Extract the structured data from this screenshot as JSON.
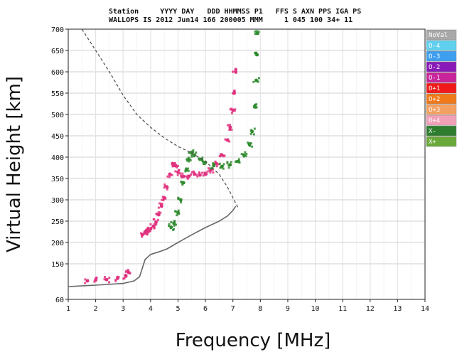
{
  "header": {
    "row1": "Station     YYYY DAY   DDD HHMMSS P1   FFS S AXN PPS IGA PS",
    "row2": "WALLOPS IS 2012 Jun14 166 200005 MMM     1 045 100 34+ 11"
  },
  "chart_data": {
    "type": "scatter",
    "title": "",
    "xlabel": "Frequency [MHz]",
    "ylabel": "Virtual Height [km]",
    "xlim": [
      1,
      14
    ],
    "ylim": [
      60,
      700
    ],
    "x_ticks": [
      "1",
      "2",
      "3",
      "4",
      "5",
      "6",
      "7",
      "8",
      "9",
      "10",
      "11",
      "12",
      "13",
      "14"
    ],
    "y_ticks": [
      "60",
      "150",
      "200",
      "250",
      "300",
      "350",
      "400",
      "450",
      "500",
      "550",
      "600",
      "650",
      "700"
    ],
    "y_tick_values": [
      60,
      150,
      200,
      250,
      300,
      350,
      400,
      450,
      500,
      550,
      600,
      650,
      700
    ],
    "grid": true,
    "legend_position": "right",
    "legend": [
      {
        "label": "NoVal",
        "color": "#a8a8a8"
      },
      {
        "label": "O-4",
        "color": "#5fd0ee"
      },
      {
        "label": "O-3",
        "color": "#3e9ef0"
      },
      {
        "label": "O-2",
        "color": "#8a1ab8"
      },
      {
        "label": "O-1",
        "color": "#c8259a"
      },
      {
        "label": "O+1",
        "color": "#f01818"
      },
      {
        "label": "O+2",
        "color": "#f07a1a"
      },
      {
        "label": "O+3",
        "color": "#f4a060"
      },
      {
        "label": "O+4",
        "color": "#f2a0b8"
      },
      {
        "label": "X-",
        "color": "#2e7d2e"
      },
      {
        "label": "X+",
        "color": "#6aa83a"
      }
    ],
    "series": [
      {
        "role": "o-trace",
        "color": "#e0307e",
        "x": [
          1.7,
          2.0,
          2.4,
          2.8,
          3.1,
          3.2,
          3.7,
          3.8,
          3.9,
          4.0,
          4.1,
          4.2,
          4.3,
          4.4,
          4.5,
          4.6,
          4.7,
          4.8,
          4.9,
          5.0,
          5.2,
          5.4,
          5.6,
          5.8,
          6.0,
          6.2,
          6.4,
          6.6,
          6.8,
          6.9,
          7.0,
          7.05,
          7.1
        ],
        "y": [
          110,
          112,
          113,
          116,
          121,
          130,
          218,
          225,
          228,
          232,
          238,
          248,
          265,
          285,
          305,
          330,
          360,
          385,
          380,
          365,
          355,
          355,
          360,
          358,
          360,
          370,
          385,
          405,
          440,
          470,
          510,
          550,
          600
        ]
      },
      {
        "role": "x-trace",
        "color": "#2e8b2e",
        "x": [
          4.75,
          4.85,
          5.0,
          5.1,
          5.2,
          5.3,
          5.4,
          5.5,
          5.6,
          5.8,
          6.0,
          6.3,
          6.6,
          6.9,
          7.2,
          7.4,
          7.6,
          7.7,
          7.8,
          7.85,
          7.88,
          7.9
        ],
        "y": [
          236,
          245,
          270,
          300,
          340,
          370,
          395,
          410,
          405,
          395,
          388,
          380,
          378,
          382,
          390,
          405,
          430,
          460,
          520,
          580,
          640,
          690
        ]
      },
      {
        "role": "virtual-height-profile",
        "color": "#666666",
        "x": [
          1.0,
          2.0,
          3.0,
          3.4,
          3.6,
          3.7,
          3.8,
          4.0,
          4.3,
          4.6,
          5.0,
          5.5,
          6.0,
          6.5,
          6.8,
          7.0,
          7.1
        ],
        "y": [
          96,
          100,
          104,
          110,
          120,
          140,
          160,
          172,
          178,
          185,
          200,
          218,
          235,
          250,
          262,
          275,
          285
        ]
      },
      {
        "role": "true-height-profile",
        "color": "#555555",
        "x": [
          1.5,
          2.0,
          2.5,
          3.0,
          3.5,
          4.0,
          4.5,
          5.0,
          5.5,
          6.0,
          6.5,
          6.8,
          7.0,
          7.2
        ],
        "y": [
          700,
          650,
          600,
          545,
          500,
          470,
          445,
          425,
          410,
          390,
          360,
          330,
          305,
          280
        ]
      }
    ]
  }
}
